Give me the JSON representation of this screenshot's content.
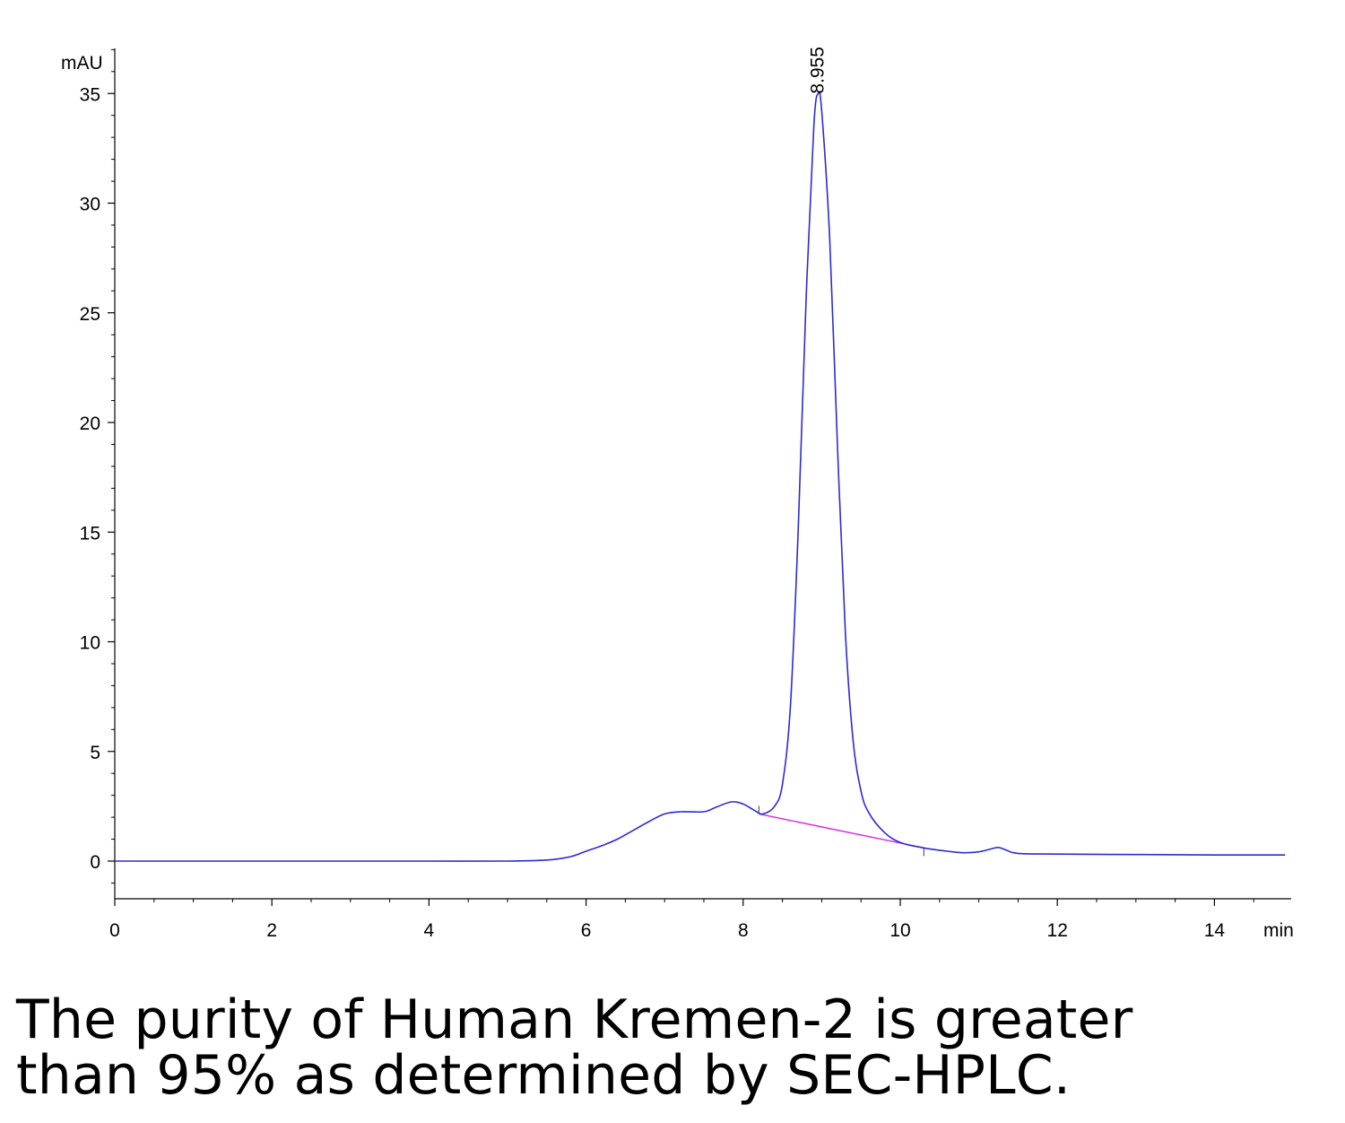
{
  "chart_data": {
    "type": "line",
    "ylabel": "mAU",
    "xlabel": "min",
    "xlim": [
      0,
      15
    ],
    "ylim": [
      -1.7,
      37.2
    ],
    "x_ticks": [
      "0",
      "2",
      "4",
      "6",
      "8",
      "10",
      "12",
      "14"
    ],
    "y_ticks": [
      "0",
      "5",
      "10",
      "15",
      "20",
      "25",
      "30",
      "35"
    ],
    "colors": {
      "trace": "#2b2bd6",
      "baseline": "#e020e0",
      "axis": "#000000"
    },
    "series": [
      {
        "points": [
          [
            0,
            0.0
          ],
          [
            1,
            0.0
          ],
          [
            2,
            0.0
          ],
          [
            3,
            0.0
          ],
          [
            4,
            0.0
          ],
          [
            5,
            0.0
          ],
          [
            5.5,
            0.05
          ],
          [
            5.8,
            0.2
          ],
          [
            6.0,
            0.45
          ],
          [
            6.2,
            0.7
          ],
          [
            6.4,
            1.0
          ],
          [
            6.6,
            1.4
          ],
          [
            6.8,
            1.8
          ],
          [
            7.0,
            2.15
          ],
          [
            7.2,
            2.25
          ],
          [
            7.5,
            2.25
          ],
          [
            7.65,
            2.45
          ],
          [
            7.85,
            2.7
          ],
          [
            8.0,
            2.6
          ],
          [
            8.15,
            2.3
          ],
          [
            8.25,
            2.15
          ],
          [
            8.4,
            2.5
          ],
          [
            8.5,
            3.5
          ],
          [
            8.6,
            7.0
          ],
          [
            8.7,
            15.0
          ],
          [
            8.8,
            25.5
          ],
          [
            8.9,
            33.5
          ],
          [
            8.955,
            35.0
          ],
          [
            9.0,
            34.2
          ],
          [
            9.1,
            28.5
          ],
          [
            9.2,
            19.0
          ],
          [
            9.3,
            10.5
          ],
          [
            9.4,
            5.5
          ],
          [
            9.5,
            3.2
          ],
          [
            9.6,
            2.2
          ],
          [
            9.8,
            1.3
          ],
          [
            10.0,
            0.85
          ],
          [
            10.3,
            0.6
          ],
          [
            10.6,
            0.45
          ],
          [
            10.8,
            0.38
          ],
          [
            11.0,
            0.42
          ],
          [
            11.15,
            0.55
          ],
          [
            11.25,
            0.62
          ],
          [
            11.35,
            0.5
          ],
          [
            11.5,
            0.35
          ],
          [
            12.0,
            0.32
          ],
          [
            13.0,
            0.3
          ],
          [
            14.0,
            0.28
          ],
          [
            14.9,
            0.28
          ]
        ]
      }
    ],
    "baseline": {
      "from": [
        8.2,
        2.15
      ],
      "to": [
        10.3,
        0.6
      ]
    },
    "peak_label": {
      "x": 8.955,
      "y": 35.0,
      "text": "8.955"
    }
  },
  "caption": {
    "line1": "The purity of Human Kremen-2 is greater",
    "line2": "than 95% as determined by SEC-HPLC."
  }
}
